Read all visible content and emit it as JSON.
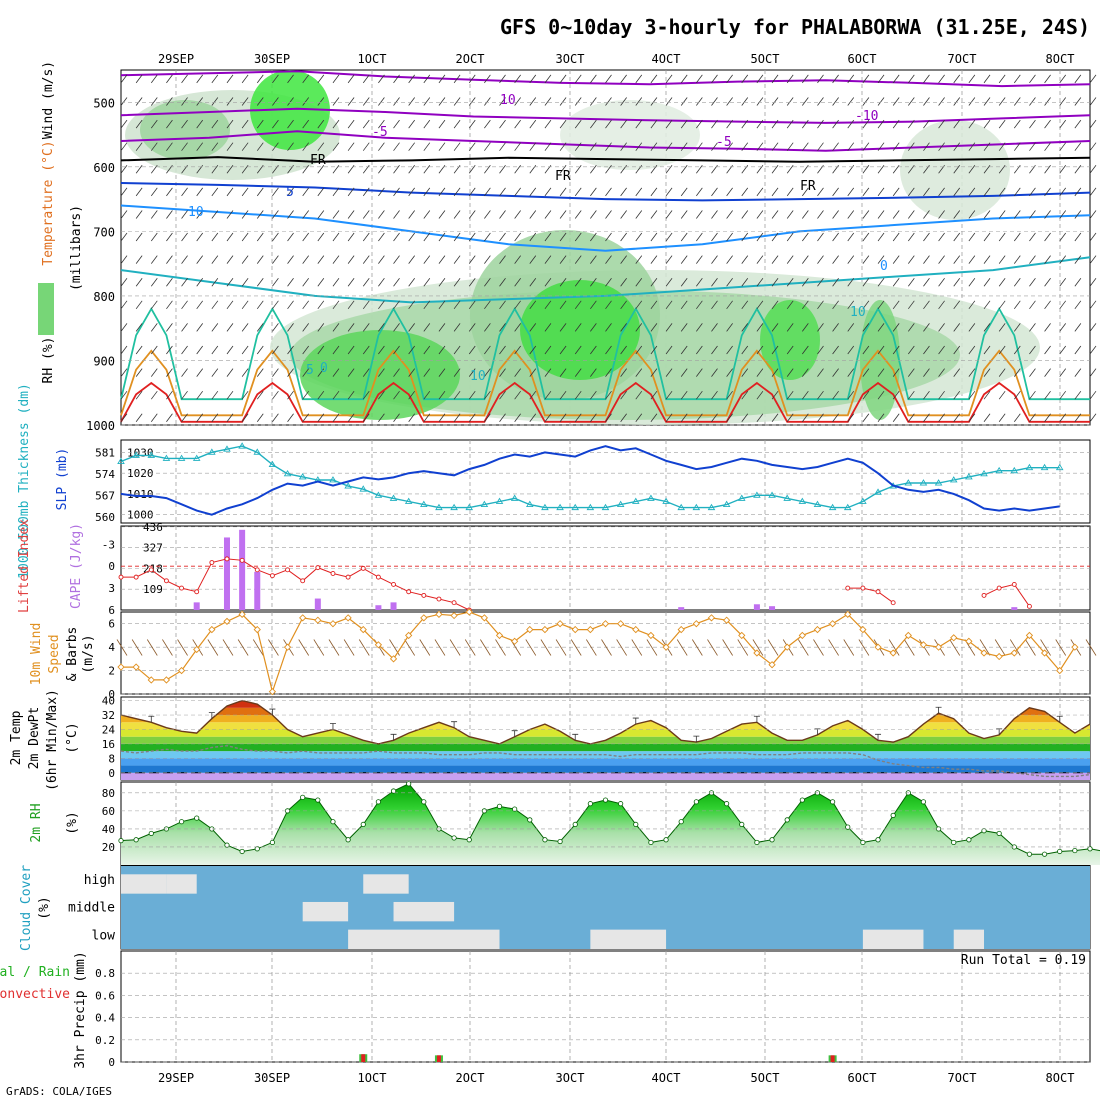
{
  "title": "GFS 0~10day 3-hourly for PHALABORWA (31.25E, 24S)",
  "footer": "GrADS: COLA/IGES",
  "date_labels": [
    "29SEP",
    "30SEP",
    "1OCT",
    "2OCT",
    "3OCT",
    "4OCT",
    "5OCT",
    "6OCT",
    "7OCT",
    "8OCT"
  ],
  "colors": {
    "purple": "#9000c0",
    "blue": "#1040d0",
    "cyan": "#20b0c0",
    "orange": "#e09020",
    "green": "#20c020",
    "red": "#e02020",
    "grid": "#a0a0a0"
  },
  "chart_data": [
    {
      "panel": "upper-air",
      "type": "heatmap",
      "ylabel_parts": [
        "RH (%)",
        "Temperature (°C)",
        "Wind (m/s)"
      ],
      "ylabel_units": "(millibars)",
      "yticks": [
        500,
        600,
        700,
        800,
        900,
        1000
      ],
      "ylim": [
        450,
        1000
      ],
      "contour_labels": [
        "10",
        "-5",
        "-10",
        "-5",
        "FR",
        "FR",
        "FR",
        "5",
        "10",
        "0",
        "0",
        "10",
        "10",
        "5"
      ],
      "freezing_level_mb": [
        590,
        585,
        592,
        590,
        586,
        588,
        590,
        592,
        590,
        588,
        586
      ]
    },
    {
      "panel": "thickness-slp",
      "type": "line",
      "ylabel_left": "1000-500mb Thickness (dm)",
      "ylabel_right": "SLP (mb)",
      "left_ticks": [
        "581",
        "574",
        "567",
        "560"
      ],
      "right_ticks": [
        "1030",
        "1020",
        "1010",
        "1000"
      ],
      "series": [
        {
          "name": "Thickness (dm)",
          "color": "#20b0c0",
          "values": [
            578,
            580,
            580,
            579,
            579,
            579,
            581,
            582,
            583,
            581,
            577,
            574,
            573,
            572,
            572,
            570,
            569,
            567,
            566,
            565,
            564,
            563,
            563,
            563,
            564,
            565,
            566,
            564,
            563,
            563,
            563,
            563,
            563,
            564,
            565,
            566,
            565,
            563,
            563,
            563,
            564,
            566,
            567,
            567,
            566,
            565,
            564,
            563,
            563,
            565,
            568,
            570,
            571,
            571,
            571,
            572,
            573,
            574,
            575,
            575,
            576,
            576,
            576
          ]
        },
        {
          "name": "SLP (mb)",
          "color": "#1040d0",
          "values": [
            1010,
            1009,
            1009,
            1008,
            1005,
            1002,
            1000,
            1003,
            1005,
            1008,
            1012,
            1015,
            1014,
            1016,
            1014,
            1016,
            1018,
            1017,
            1018,
            1020,
            1021,
            1020,
            1019,
            1022,
            1024,
            1027,
            1029,
            1028,
            1030,
            1029,
            1028,
            1031,
            1033,
            1031,
            1032,
            1029,
            1026,
            1024,
            1022,
            1023,
            1025,
            1027,
            1026,
            1024,
            1023,
            1022,
            1023,
            1025,
            1027,
            1025,
            1020,
            1014,
            1012,
            1011,
            1012,
            1010,
            1007,
            1003,
            1002,
            1003,
            1002,
            1003,
            1004
          ]
        }
      ]
    },
    {
      "panel": "instability",
      "type": "bar",
      "ylabel_left": "Lifted Index",
      "ylabel_right": "CAPE (J/kg)",
      "left_ticks": [
        "-3",
        "0",
        "3",
        "6"
      ],
      "right_ticks": [
        "436",
        "327",
        "218",
        "109"
      ],
      "cape_bars": [
        [
          5,
          40
        ],
        [
          7,
          380
        ],
        [
          8,
          420
        ],
        [
          9,
          200
        ],
        [
          13,
          60
        ],
        [
          17,
          25
        ],
        [
          18,
          40
        ],
        [
          37,
          15
        ],
        [
          42,
          30
        ],
        [
          43,
          20
        ],
        [
          59,
          15
        ]
      ],
      "lifted_index": [
        1.5,
        1.5,
        0.5,
        2,
        3,
        3.5,
        -0.5,
        -1,
        -0.8,
        0.5,
        1.3,
        0.5,
        2,
        0.2,
        1,
        1.5,
        0.3,
        1.5,
        2.5,
        3.5,
        4,
        4.5,
        5,
        6,
        null,
        null,
        null,
        null,
        null,
        null,
        null,
        null,
        null,
        null,
        null,
        null,
        null,
        null,
        null,
        null,
        null,
        null,
        null,
        null,
        null,
        null,
        null,
        null,
        3,
        3,
        3.5,
        5,
        null,
        null,
        null,
        null,
        null,
        4,
        3,
        2.5,
        5.5,
        null,
        null
      ]
    },
    {
      "panel": "wind-10m",
      "type": "line",
      "ylabel": "10m Wind Speed & Barbs (m/s)",
      "yticks": [
        "6",
        "4",
        "2",
        "0"
      ],
      "ylim": [
        0,
        7
      ],
      "series": [
        {
          "name": "10m wind speed",
          "color": "#e09020",
          "values": [
            2.3,
            2.3,
            1.2,
            1.2,
            2,
            3.8,
            5.5,
            6.2,
            6.8,
            5.5,
            0.2,
            4,
            6.5,
            6.3,
            6,
            6.5,
            5.5,
            4.2,
            3,
            5,
            6.5,
            6.8,
            6.7,
            7,
            6.5,
            5,
            4.5,
            5.5,
            5.5,
            6,
            5.5,
            5.5,
            6,
            6,
            5.5,
            5,
            4,
            5.5,
            6,
            6.5,
            6.3,
            5,
            3.5,
            2.5,
            4,
            5,
            5.5,
            6,
            6.8,
            5.5,
            4,
            3.5,
            5,
            4.2,
            4,
            4.8,
            4.5,
            3.5,
            3.2,
            3.5,
            5,
            3.5,
            2,
            4
          ]
        }
      ]
    },
    {
      "panel": "temperature",
      "type": "area",
      "ylabel": "2m Temp 2m DewPt (6hr Min/Max) (°C)",
      "yticks": [
        "40",
        "32",
        "24",
        "16",
        "8",
        "0"
      ],
      "ylim": [
        -4,
        42
      ],
      "series": [
        {
          "name": "2m Temp",
          "values": [
            32,
            30,
            28,
            25,
            23,
            22,
            30,
            37,
            40,
            38,
            32,
            24,
            20,
            22,
            24,
            21,
            18,
            16,
            18,
            22,
            25,
            28,
            25,
            20,
            18,
            16,
            20,
            24,
            27,
            23,
            18,
            16,
            18,
            22,
            27,
            29,
            25,
            18,
            17,
            19,
            23,
            27,
            28,
            22,
            18,
            18,
            21,
            26,
            29,
            24,
            18,
            17,
            20,
            27,
            33,
            30,
            22,
            19,
            21,
            30,
            36,
            34,
            28,
            22,
            27
          ]
        },
        {
          "name": "2m DewPt",
          "values": [
            12,
            11,
            12,
            13,
            12,
            12,
            14,
            15,
            13,
            12,
            12,
            11,
            12,
            11,
            11,
            11,
            11,
            12,
            11,
            11,
            11,
            10,
            10,
            10,
            11,
            11,
            10,
            10,
            10,
            10,
            10,
            10,
            10,
            9,
            10,
            10,
            10,
            10,
            10,
            11,
            11,
            11,
            10,
            10,
            10,
            11,
            11,
            11,
            11,
            10,
            7,
            5,
            4,
            3,
            3,
            2,
            2,
            1,
            1,
            0,
            -1,
            -2,
            -2,
            -2,
            -1
          ]
        }
      ]
    },
    {
      "panel": "rh-2m",
      "type": "area",
      "ylabel": "2m RH (%)",
      "yticks": [
        "80",
        "60",
        "40",
        "20"
      ],
      "ylim": [
        0,
        92
      ],
      "series": [
        {
          "name": "2m RH",
          "values": [
            27,
            28,
            35,
            40,
            48,
            52,
            40,
            22,
            15,
            18,
            25,
            60,
            75,
            72,
            48,
            28,
            45,
            70,
            82,
            90,
            70,
            40,
            30,
            28,
            60,
            65,
            62,
            50,
            28,
            26,
            45,
            68,
            72,
            68,
            45,
            25,
            28,
            48,
            70,
            80,
            68,
            45,
            25,
            28,
            50,
            72,
            80,
            70,
            42,
            25,
            28,
            55,
            80,
            70,
            40,
            25,
            28,
            38,
            35,
            20,
            12,
            12,
            15,
            16,
            18,
            15
          ]
        }
      ]
    },
    {
      "panel": "cloud-cover",
      "type": "heatmap",
      "ylabel": "Cloud Cover (%)",
      "levels": [
        "high",
        "middle",
        "low"
      ]
    },
    {
      "panel": "precip",
      "type": "bar",
      "ylabel": "3hr Precip (mm)",
      "legend": [
        "Total / Rain",
        "Convective"
      ],
      "run_total_label": "Run Total = 0.19",
      "yticks": [
        "0.8",
        "0.6",
        "0.4",
        "0.2",
        "0"
      ],
      "ylim": [
        0,
        1
      ],
      "bars": [
        {
          "i": 16,
          "v": 0.07
        },
        {
          "i": 21,
          "v": 0.06
        },
        {
          "i": 47,
          "v": 0.06
        }
      ]
    }
  ]
}
